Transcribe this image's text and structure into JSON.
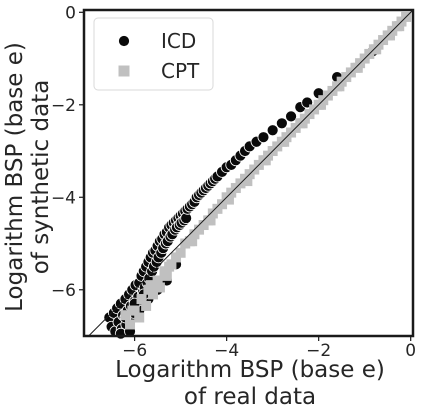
{
  "chart_data": {
    "type": "scatter",
    "title": "",
    "xlabel": [
      "Logarithm BSP (base e)",
      "of real data"
    ],
    "ylabel": [
      "Logarithm BSP (base e)",
      "of synthetic data"
    ],
    "xlim": [
      -7.1,
      0.05
    ],
    "ylim": [
      -7.0,
      0.05
    ],
    "xticks": [
      -6,
      -4,
      -2,
      0
    ],
    "yticks": [
      -6,
      -4,
      -2,
      0
    ],
    "xtick_labels": [
      "−6",
      "−4",
      "−2",
      "0"
    ],
    "ytick_labels": [
      "−6",
      "−4",
      "−2",
      "0"
    ],
    "grid": false,
    "reference_line": "y = x",
    "legend": {
      "placement": "top-left",
      "entries": [
        "ICD",
        "CPT"
      ]
    },
    "series": [
      {
        "name": "ICD",
        "marker": "circle",
        "color": "#0a0a0a",
        "x": [
          -6.55,
          -6.5,
          -6.45,
          -6.42,
          -6.38,
          -6.35,
          -6.3,
          -6.28,
          -6.25,
          -6.2,
          -6.18,
          -6.15,
          -6.12,
          -6.1,
          -6.08,
          -6.05,
          -6.02,
          -6.0,
          -5.98,
          -5.95,
          -5.92,
          -5.9,
          -5.88,
          -5.85,
          -5.82,
          -5.8,
          -5.78,
          -5.75,
          -5.72,
          -5.7,
          -5.68,
          -5.65,
          -5.62,
          -5.6,
          -5.58,
          -5.55,
          -5.52,
          -5.5,
          -5.48,
          -5.45,
          -5.42,
          -5.4,
          -5.38,
          -5.35,
          -5.32,
          -5.3,
          -5.28,
          -5.25,
          -5.22,
          -5.2,
          -5.18,
          -5.15,
          -5.12,
          -5.1,
          -5.08,
          -5.05,
          -5.02,
          -5.0,
          -4.98,
          -4.95,
          -4.92,
          -4.9,
          -4.88,
          -4.85,
          -4.8,
          -4.75,
          -4.7,
          -4.65,
          -4.6,
          -4.55,
          -4.5,
          -4.45,
          -4.4,
          -4.35,
          -4.3,
          -4.25,
          -4.2,
          -4.1,
          -4.0,
          -3.9,
          -3.8,
          -3.7,
          -3.6,
          -3.5,
          -3.35,
          -3.2,
          -3.0,
          -2.8,
          -2.6,
          -2.4,
          -2.25,
          -2.0,
          -1.6,
          -0.85,
          -0.82,
          -6.3,
          -6.1,
          -5.9,
          -5.7,
          -5.5,
          -5.3,
          -5.1,
          -6.2,
          -6.0,
          -5.8
        ],
        "y": [
          -6.6,
          -6.8,
          -6.5,
          -6.9,
          -6.4,
          -6.7,
          -6.3,
          -6.85,
          -6.55,
          -6.2,
          -6.75,
          -6.45,
          -6.1,
          -6.6,
          -6.35,
          -6.0,
          -6.5,
          -6.25,
          -5.9,
          -6.4,
          -6.15,
          -5.85,
          -6.3,
          -5.7,
          -6.05,
          -5.6,
          -5.95,
          -5.5,
          -5.85,
          -5.4,
          -5.75,
          -5.3,
          -5.6,
          -5.2,
          -5.5,
          -5.15,
          -5.4,
          -5.05,
          -5.3,
          -4.95,
          -5.2,
          -4.9,
          -5.1,
          -4.8,
          -5.0,
          -4.75,
          -4.95,
          -4.65,
          -4.85,
          -4.6,
          -4.8,
          -4.55,
          -4.7,
          -4.5,
          -4.65,
          -4.45,
          -4.6,
          -4.4,
          -4.55,
          -4.35,
          -4.5,
          -4.3,
          -4.45,
          -4.25,
          -4.2,
          -4.15,
          -4.1,
          -4.0,
          -3.95,
          -3.9,
          -3.85,
          -3.8,
          -3.75,
          -3.7,
          -3.65,
          -3.6,
          -3.55,
          -3.45,
          -3.35,
          -3.3,
          -3.2,
          -3.1,
          -3.0,
          -2.9,
          -2.8,
          -2.7,
          -2.55,
          -2.4,
          -2.25,
          -2.05,
          -1.95,
          -1.75,
          -1.4,
          -0.87,
          -0.84,
          -6.95,
          -6.9,
          -6.45,
          -6.2,
          -6.0,
          -5.8,
          -5.45,
          -6.6,
          -6.3,
          -6.1
        ]
      },
      {
        "name": "CPT",
        "marker": "square",
        "color": "#c0c0c0",
        "x": [
          -6.2,
          -6.1,
          -6.0,
          -5.9,
          -5.85,
          -5.75,
          -5.7,
          -5.6,
          -5.5,
          -5.45,
          -5.35,
          -5.3,
          -5.2,
          -5.1,
          -5.0,
          -4.9,
          -4.8,
          -4.7,
          -4.6,
          -4.5,
          -4.4,
          -4.3,
          -4.2,
          -4.1,
          -4.0,
          -3.9,
          -3.8,
          -3.7,
          -3.6,
          -3.5,
          -3.4,
          -3.3,
          -3.2,
          -3.1,
          -3.0,
          -2.9,
          -2.8,
          -2.7,
          -2.6,
          -2.5,
          -2.4,
          -2.3,
          -2.2,
          -2.1,
          -2.0,
          -1.9,
          -1.8,
          -1.7,
          -1.6,
          -1.5,
          -1.4,
          -1.3,
          -1.2,
          -1.1,
          -1.0,
          -0.9,
          -0.8,
          -0.7,
          -0.6,
          -0.5,
          -0.4,
          -0.3,
          -0.2,
          -0.1,
          -6.05,
          -5.65,
          -5.25,
          -4.75,
          -4.35,
          -3.95,
          -3.55,
          -3.15,
          -2.75,
          -2.35,
          -1.95,
          -1.55,
          -1.15,
          -0.75,
          -0.45,
          -0.25
        ],
        "y": [
          -6.55,
          -6.75,
          -6.45,
          -6.6,
          -6.2,
          -6.35,
          -6.0,
          -6.1,
          -5.8,
          -5.95,
          -5.6,
          -5.7,
          -5.45,
          -5.3,
          -5.2,
          -5.0,
          -4.95,
          -4.8,
          -4.7,
          -4.6,
          -4.5,
          -4.35,
          -4.25,
          -4.15,
          -4.0,
          -3.9,
          -3.8,
          -3.7,
          -3.6,
          -3.5,
          -3.4,
          -3.3,
          -3.2,
          -3.1,
          -3.0,
          -2.9,
          -2.8,
          -2.7,
          -2.6,
          -2.5,
          -2.4,
          -2.3,
          -2.2,
          -2.1,
          -2.0,
          -1.9,
          -1.8,
          -1.7,
          -1.6,
          -1.5,
          -1.4,
          -1.3,
          -1.2,
          -1.1,
          -1.0,
          -0.9,
          -0.8,
          -0.7,
          -0.6,
          -0.5,
          -0.4,
          -0.3,
          -0.2,
          -0.1,
          -6.45,
          -5.9,
          -5.5,
          -4.95,
          -4.5,
          -4.05,
          -3.65,
          -3.2,
          -2.8,
          -2.4,
          -2.0,
          -1.6,
          -1.2,
          -0.8,
          -0.5,
          -0.3
        ]
      }
    ]
  }
}
